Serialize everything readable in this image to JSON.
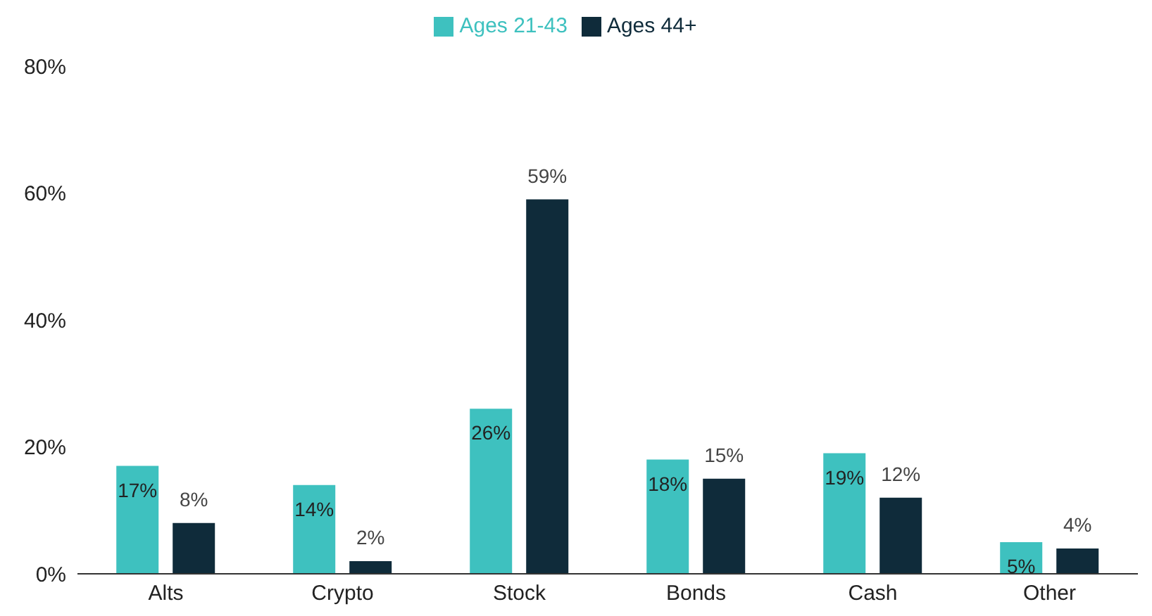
{
  "chart_data": {
    "type": "bar",
    "categories": [
      "Alts",
      "Crypto",
      "Stock",
      "Bonds",
      "Cash",
      "Other"
    ],
    "series": [
      {
        "name": "Ages 21-43",
        "color": "#3ec1bf",
        "values": [
          17,
          14,
          26,
          18,
          19,
          5
        ],
        "value_labels": [
          "17%",
          "14%",
          "26%",
          "18%",
          "19%",
          "5%"
        ]
      },
      {
        "name": "Ages 44+",
        "color": "#0f2b3a",
        "values": [
          8,
          2,
          59,
          15,
          12,
          4
        ],
        "value_labels": [
          "8%",
          "2%",
          "59%",
          "15%",
          "12%",
          "4%"
        ]
      }
    ],
    "ylim": [
      0,
      80
    ],
    "yticks": [
      {
        "value": 0,
        "label": "0%"
      },
      {
        "value": 20,
        "label": "20%"
      },
      {
        "value": 40,
        "label": "40%"
      },
      {
        "value": 60,
        "label": "60%"
      },
      {
        "value": 80,
        "label": "80%"
      }
    ],
    "grid": false,
    "legend": "top"
  }
}
